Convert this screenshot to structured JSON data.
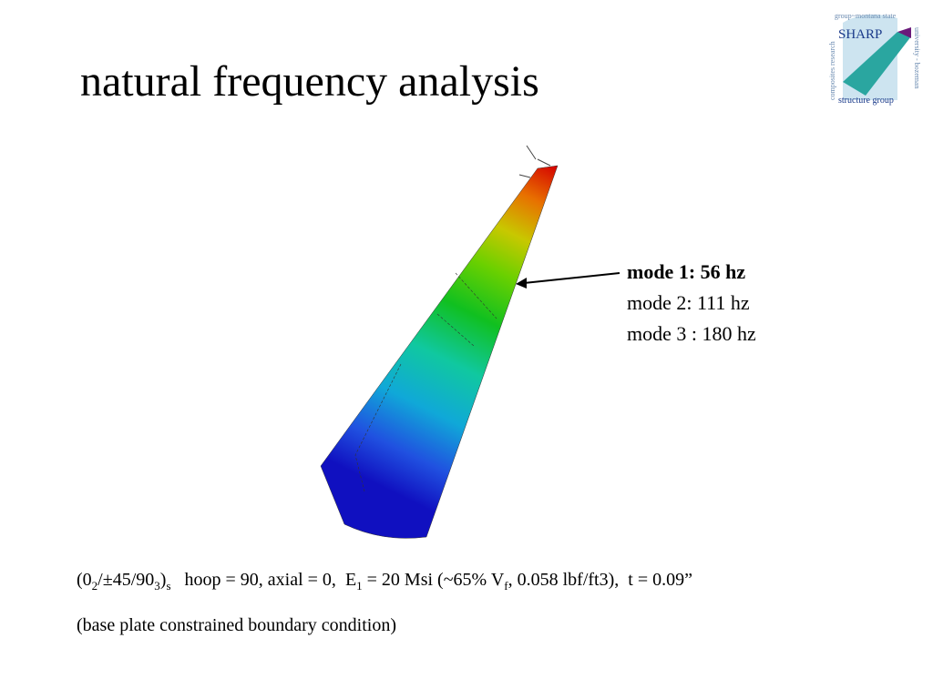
{
  "title": "natural frequency analysis",
  "logo": {
    "name": "SHARP",
    "group": "structure group",
    "top_text": "group~montana state",
    "right_text": "university - bozeman",
    "left_text": "composites research"
  },
  "modes": [
    {
      "text": "mode 1: 56 hz",
      "bold": true
    },
    {
      "text": "mode 2: 111 hz",
      "bold": false
    },
    {
      "text": "mode 3 : 180 hz",
      "bold": false
    }
  ],
  "laminate": [
    {
      "text": "(0",
      "sub": false
    },
    {
      "text": "2",
      "sub": true
    },
    {
      "text": "/±45/90",
      "sub": false
    },
    {
      "text": "3",
      "sub": true
    },
    {
      "text": ")",
      "sub": false
    },
    {
      "text": "s",
      "sub": true
    },
    {
      "text": "   hoop = 90, axial = 0,  ",
      "sub": false
    },
    {
      "text": "E",
      "sub": false
    },
    {
      "text": "1",
      "sub": true
    },
    {
      "text": " = 20 Msi (~65% V",
      "sub": false
    },
    {
      "text": "f",
      "sub": true
    },
    {
      "text": ", 0.058 lbf/ft3),  t = 0.09”",
      "sub": false
    }
  ],
  "note": "(base plate constrained boundary condition)"
}
